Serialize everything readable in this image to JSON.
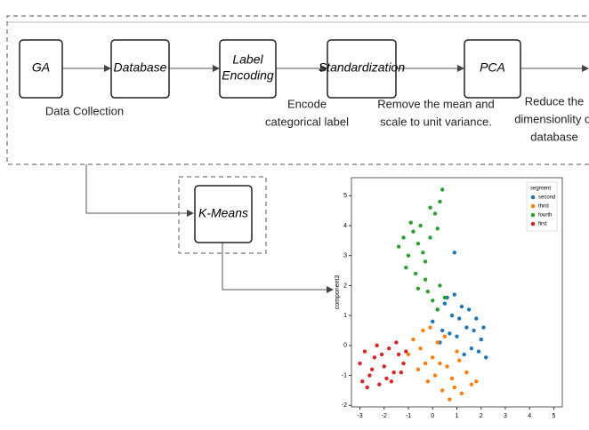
{
  "nodes": [
    {
      "label": [
        "GA"
      ]
    },
    {
      "label": [
        "Database"
      ]
    },
    {
      "label": [
        "Label",
        "Encoding"
      ]
    },
    {
      "label": [
        "Standardization"
      ]
    },
    {
      "label": [
        "PCA"
      ]
    }
  ],
  "captions": [
    [
      "Data Collection"
    ],
    [
      "Encode",
      "categorical label"
    ],
    [
      "Remove the mean and",
      "scale to unit variance."
    ],
    [
      "Reduce the",
      "dimensionlity of",
      "database"
    ]
  ],
  "cluster_node": {
    "label": "K-Means"
  },
  "chart_data": {
    "type": "scatter",
    "ylabel": "component3",
    "legend_title": "segment",
    "legend": "upper right",
    "xlim": [
      -3.35,
      5.35
    ],
    "ylim": [
      -2.05,
      5.6
    ],
    "xticks": [
      -3,
      -2,
      -1,
      0,
      1,
      2,
      3,
      4,
      5
    ],
    "yticks": [
      -2,
      -1,
      0,
      1,
      2,
      3,
      4,
      5
    ],
    "grid": false,
    "series": [
      {
        "name": "second",
        "color": "#1f77b4",
        "x": [
          0.0,
          0.2,
          0.4,
          0.6,
          0.8,
          1.0,
          1.2,
          1.4,
          1.6,
          1.8,
          2.0,
          2.2,
          0.3,
          0.7,
          1.1,
          1.5,
          1.9,
          0.5,
          0.9,
          1.3,
          1.7,
          2.1,
          0.9
        ],
        "values": [
          0.8,
          1.2,
          0.5,
          1.6,
          1.0,
          0.3,
          1.3,
          0.6,
          -0.1,
          0.9,
          0.2,
          -0.4,
          0.1,
          0.4,
          0.9,
          1.2,
          -0.2,
          1.4,
          1.7,
          -0.3,
          0.5,
          0.6,
          3.1
        ]
      },
      {
        "name": "third",
        "color": "#ff7f0e",
        "x": [
          -1.0,
          -0.8,
          -0.6,
          -0.4,
          -0.2,
          0.0,
          0.2,
          0.4,
          0.6,
          0.8,
          1.0,
          1.2,
          1.4,
          1.6,
          -0.5,
          -0.1,
          0.3,
          0.7,
          1.1,
          0.1,
          0.5,
          0.9,
          -0.3,
          1.8
        ],
        "values": [
          -0.3,
          0.2,
          -0.8,
          0.5,
          -1.2,
          -0.4,
          0.1,
          -1.5,
          -0.7,
          -1.1,
          -0.2,
          -1.6,
          -0.9,
          -1.3,
          -0.1,
          0.6,
          -0.6,
          -1.8,
          -0.5,
          -1.0,
          0.3,
          -1.4,
          -0.6,
          -1.2
        ]
      },
      {
        "name": "fourth",
        "color": "#2ca02c",
        "x": [
          -1.4,
          -1.2,
          -1.0,
          -0.8,
          -0.6,
          -0.5,
          -0.3,
          -0.1,
          0.1,
          0.3,
          0.4,
          -1.1,
          -0.9,
          -0.7,
          -0.4,
          -0.2,
          0.0,
          0.2,
          0.5,
          -0.6,
          -0.3,
          -0.1,
          0.2,
          0.3
        ],
        "values": [
          3.3,
          3.6,
          3.0,
          3.8,
          3.4,
          4.0,
          2.8,
          3.6,
          4.4,
          4.8,
          5.2,
          2.6,
          4.1,
          2.4,
          3.1,
          1.8,
          1.5,
          1.2,
          1.6,
          1.9,
          2.2,
          4.6,
          3.9,
          2.0
        ]
      },
      {
        "name": "first",
        "color": "#d62728",
        "x": [
          -3.0,
          -2.8,
          -2.6,
          -2.4,
          -2.2,
          -2.0,
          -1.8,
          -1.6,
          -1.4,
          -1.2,
          -2.7,
          -2.3,
          -1.9,
          -1.5,
          -2.5,
          -2.1,
          -1.7,
          -2.9,
          -1.3,
          -1.1
        ],
        "values": [
          -0.6,
          -0.2,
          -1.0,
          -0.4,
          -1.3,
          -0.7,
          -0.1,
          -0.9,
          -0.3,
          -0.6,
          -1.4,
          0.0,
          -1.1,
          0.1,
          -0.8,
          -0.3,
          -1.2,
          -1.2,
          -0.9,
          -0.2
        ]
      }
    ]
  }
}
